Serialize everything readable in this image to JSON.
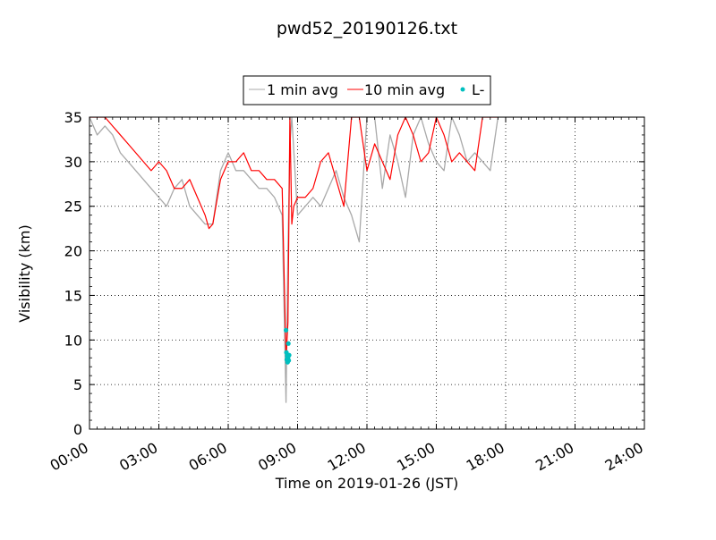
{
  "chart_data": {
    "type": "line",
    "title": "pwd52_20190126.txt",
    "xlabel": "Time on 2019-01-26 (JST)",
    "ylabel": "Visibility (km)",
    "xlim": [
      "00:00",
      "24:00"
    ],
    "ylim": [
      0,
      35
    ],
    "x_ticks": [
      "00:00",
      "03:00",
      "06:00",
      "09:00",
      "12:00",
      "15:00",
      "18:00",
      "21:00",
      "24:00"
    ],
    "y_ticks": [
      "0",
      "5",
      "10",
      "15",
      "20",
      "25",
      "30",
      "35"
    ],
    "grid": true,
    "grid_style": "dotted",
    "legend_position": "top-center",
    "series": [
      {
        "name": "1 min avg",
        "color": "#a9a9a9",
        "style": "line",
        "x": [
          "00:00",
          "00:20",
          "00:40",
          "01:00",
          "01:20",
          "01:40",
          "02:00",
          "02:20",
          "02:40",
          "03:00",
          "03:20",
          "03:40",
          "04:00",
          "04:20",
          "04:40",
          "05:00",
          "05:20",
          "05:40",
          "06:00",
          "06:20",
          "06:40",
          "07:00",
          "07:20",
          "07:40",
          "08:00",
          "08:20",
          "08:30",
          "08:35",
          "08:40",
          "08:45",
          "09:00",
          "09:20",
          "09:40",
          "10:00",
          "10:20",
          "10:40",
          "11:00",
          "11:20",
          "11:40",
          "12:00",
          "12:20",
          "12:40",
          "13:00",
          "13:20",
          "13:40",
          "14:00",
          "14:20",
          "14:40",
          "15:00",
          "15:20",
          "15:40",
          "16:00",
          "16:20",
          "16:40",
          "17:00",
          "17:20",
          "17:40",
          "18:00",
          "19:00",
          "20:00",
          "21:00",
          "21:20",
          "22:00",
          "23:00",
          "24:00"
        ],
        "y": [
          35,
          33,
          34,
          33,
          31,
          30,
          29,
          28,
          27,
          26,
          25,
          27,
          28,
          25,
          24,
          23,
          23,
          29,
          31,
          29,
          29,
          28,
          27,
          27,
          26,
          24,
          3,
          20,
          32,
          35,
          24,
          25,
          26,
          25,
          27,
          29,
          26,
          24,
          21,
          35,
          35,
          27,
          33,
          30,
          26,
          33,
          35,
          32,
          30,
          29,
          35,
          33,
          30,
          31,
          30,
          29,
          35,
          35,
          35,
          35,
          35,
          35,
          35,
          35,
          35
        ]
      },
      {
        "name": "10 min avg",
        "color": "#ff0000",
        "style": "line",
        "x": [
          "00:00",
          "00:20",
          "00:40",
          "01:00",
          "01:20",
          "01:40",
          "02:00",
          "02:20",
          "02:40",
          "03:00",
          "03:20",
          "03:40",
          "04:00",
          "04:20",
          "04:40",
          "05:00",
          "05:10",
          "05:20",
          "05:40",
          "06:00",
          "06:20",
          "06:40",
          "07:00",
          "07:20",
          "07:40",
          "08:00",
          "08:20",
          "08:30",
          "08:35",
          "08:40",
          "08:45",
          "08:50",
          "09:00",
          "09:20",
          "09:40",
          "10:00",
          "10:20",
          "10:40",
          "11:00",
          "11:20",
          "11:40",
          "12:00",
          "12:20",
          "12:40",
          "13:00",
          "13:20",
          "13:40",
          "14:00",
          "14:20",
          "14:40",
          "15:00",
          "15:20",
          "15:40",
          "16:00",
          "16:20",
          "16:40",
          "17:00",
          "17:20",
          "17:40"
        ],
        "y": [
          35,
          35,
          35,
          34,
          33,
          32,
          31,
          30,
          29,
          30,
          29,
          27,
          27,
          28,
          26,
          24,
          22.5,
          23,
          28,
          30,
          30,
          31,
          29,
          29,
          28,
          28,
          27,
          8,
          12,
          35,
          23,
          25,
          26,
          26,
          27,
          30,
          31,
          28,
          25,
          35,
          35,
          29,
          32,
          30,
          28,
          33,
          35,
          33,
          30,
          31,
          35,
          33,
          30,
          31,
          30,
          29,
          35,
          35,
          35
        ]
      },
      {
        "name": "L-",
        "color": "#00bfbf",
        "style": "markers",
        "x": [
          "08:30",
          "08:31",
          "08:32",
          "08:33",
          "08:34",
          "08:35",
          "08:36",
          "08:37",
          "08:38"
        ],
        "y": [
          11.1,
          8.6,
          7.8,
          8.2,
          7.5,
          8.0,
          9.6,
          7.7,
          8.3
        ]
      }
    ]
  }
}
